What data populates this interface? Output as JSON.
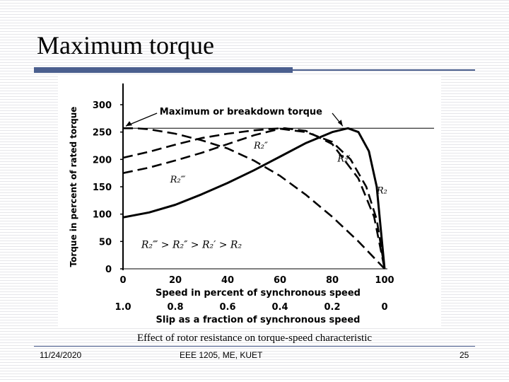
{
  "slide": {
    "title": "Maximum torque",
    "caption": "Effect of rotor resistance on torque-speed characteristic",
    "footer": {
      "date": "11/24/2020",
      "center": "EEE 1205, ME, KUET",
      "page": "25"
    }
  },
  "chart_data": {
    "type": "line",
    "title": "",
    "xlabel": "Speed in percent of synchronous speed",
    "x2label": "Slip as a fraction of synchronous speed",
    "ylabel": "Torque in percent of rated torque",
    "xlim": [
      0,
      100
    ],
    "ylim": [
      0,
      300
    ],
    "xticks": [
      0,
      20,
      40,
      60,
      80,
      100
    ],
    "x2ticks": [
      "1.0",
      "0.8",
      "0.6",
      "0.4",
      "0.2",
      "0"
    ],
    "yticks": [
      0,
      50,
      100,
      150,
      200,
      250,
      300
    ],
    "max_torque_line": 257,
    "max_torque_label": "Maximum or breakdown torque",
    "inequality_label": "R₂‴ > R₂″ > R₂′ > R₂",
    "series": [
      {
        "name": "R₂",
        "style": "solid",
        "x": [
          0,
          10,
          20,
          30,
          40,
          50,
          60,
          70,
          80,
          86,
          90,
          94,
          97,
          100
        ],
        "y": [
          94,
          103,
          117,
          136,
          157,
          180,
          205,
          230,
          250,
          257,
          250,
          215,
          150,
          0
        ]
      },
      {
        "name": "R₂′",
        "style": "dashed",
        "x": [
          0,
          10,
          20,
          30,
          40,
          50,
          60,
          70,
          80,
          87,
          93,
          97,
          100
        ],
        "y": [
          175,
          185,
          198,
          212,
          228,
          244,
          256,
          250,
          232,
          200,
          150,
          90,
          0
        ]
      },
      {
        "name": "R₂″",
        "style": "dashed",
        "x": [
          0,
          10,
          20,
          30,
          40,
          50,
          60,
          62,
          70,
          80,
          90,
          96,
          100
        ],
        "y": [
          203,
          214,
          227,
          239,
          247,
          253,
          257,
          257,
          252,
          228,
          165,
          95,
          0
        ]
      },
      {
        "name": "R₂‴",
        "style": "dashed",
        "x": [
          0,
          5,
          10,
          20,
          30,
          40,
          50,
          60,
          70,
          80,
          90,
          100
        ],
        "y": [
          257,
          257,
          255,
          247,
          235,
          220,
          198,
          170,
          135,
          95,
          50,
          0
        ]
      }
    ],
    "grid": false,
    "legend": "inline curve labels"
  }
}
